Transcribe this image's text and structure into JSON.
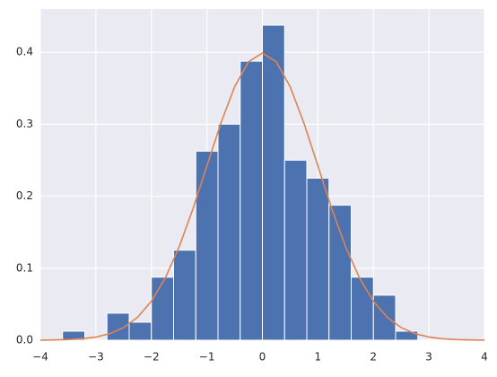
{
  "chart_data": {
    "type": "histogram",
    "bins": [
      -3.6,
      -3.2,
      -2.8,
      -2.4,
      -2.0,
      -1.6,
      -1.2,
      -0.8,
      -0.4,
      0,
      0.4,
      0.8,
      1.2,
      1.6,
      2.0,
      2.4,
      2.8
    ],
    "counts": [
      0.0125,
      0,
      0.0375,
      0.025,
      0.0875,
      0.125,
      0.2625,
      0.3,
      0.3875,
      0.4375,
      0.25,
      0.225,
      0.1875,
      0.0875,
      0.0625,
      0.0125
    ],
    "color": "#4c72b0",
    "line": {
      "type": "line",
      "color": "#dd8452",
      "x": [
        -4,
        -3.75,
        -3.5,
        -3.25,
        -3,
        -2.75,
        -2.5,
        -2.25,
        -2,
        -1.75,
        -1.5,
        -1.25,
        -1,
        -0.75,
        -0.5,
        -0.25,
        0,
        0.25,
        0.5,
        0.75,
        1,
        1.25,
        1.5,
        1.75,
        2,
        2.25,
        2.5,
        2.75,
        3,
        3.25,
        3.5,
        3.75,
        4
      ],
      "values": [
        0.0001,
        0.0004,
        0.0009,
        0.002,
        0.0044,
        0.0091,
        0.0175,
        0.0317,
        0.054,
        0.0863,
        0.1295,
        0.1826,
        0.242,
        0.3011,
        0.3521,
        0.3867,
        0.3989,
        0.3867,
        0.3521,
        0.3011,
        0.242,
        0.1826,
        0.1295,
        0.0863,
        0.054,
        0.0317,
        0.0175,
        0.0091,
        0.0044,
        0.002,
        0.0009,
        0.0004,
        0.0001
      ]
    },
    "xlim": [
      -4,
      4
    ],
    "ylim": [
      0,
      0.46
    ],
    "xticks": [
      {
        "value": -4,
        "label": "−4"
      },
      {
        "value": -3,
        "label": "−3"
      },
      {
        "value": -2,
        "label": "−2"
      },
      {
        "value": -1,
        "label": "−1"
      },
      0,
      1,
      2,
      3,
      4
    ],
    "yticks": [
      {
        "value": 0,
        "label": "0.0"
      },
      0.1,
      0.2,
      0.3,
      0.4
    ],
    "grid": true
  }
}
